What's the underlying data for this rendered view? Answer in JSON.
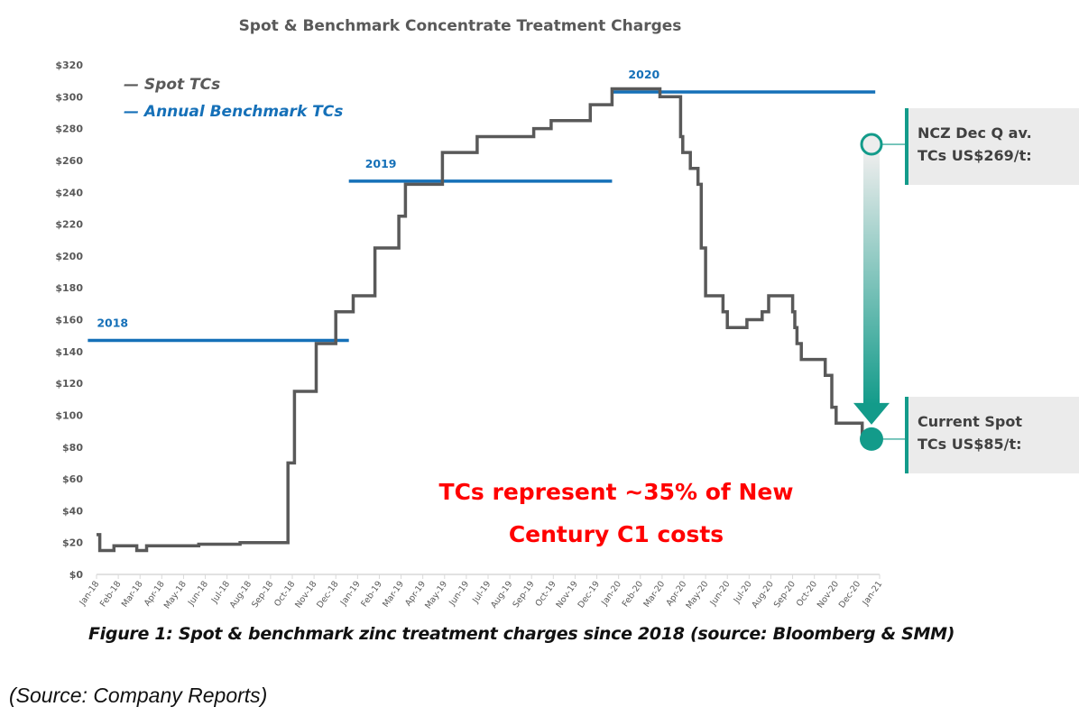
{
  "chart_data": {
    "type": "line",
    "title": "Spot & Benchmark Concentrate Treatment Charges",
    "xlabel": "",
    "ylabel": "",
    "ylim": [
      0,
      320
    ],
    "y_ticks": [
      "$0",
      "$20",
      "$40",
      "$60",
      "$80",
      "$100",
      "$120",
      "$140",
      "$160",
      "$180",
      "$200",
      "$220",
      "$240",
      "$260",
      "$280",
      "$300",
      "$320"
    ],
    "y_tick_values": [
      0,
      20,
      40,
      60,
      80,
      100,
      120,
      140,
      160,
      180,
      200,
      220,
      240,
      260,
      280,
      300,
      320
    ],
    "x_ticks": [
      "Jan-18",
      "Feb-18",
      "Mar-18",
      "Apr-18",
      "May-18",
      "Jun-18",
      "Jul-18",
      "Aug-18",
      "Sep-18",
      "Oct-18",
      "Nov-18",
      "Dec-18",
      "Jan-19",
      "Feb-19",
      "Mar-19",
      "Apr-19",
      "May-19",
      "Jun-19",
      "Jul-19",
      "Aug-19",
      "Sep-19",
      "Oct-19",
      "Nov-19",
      "Dec-19",
      "Jan-20",
      "Feb-20",
      "Mar-20",
      "Apr-20",
      "May-20",
      "Jun-20",
      "Jul-20",
      "Aug-20",
      "Sep-20",
      "Oct-20",
      "Nov-20",
      "Dec-20",
      "Jan-21"
    ],
    "xlim_months": [
      0,
      36
    ],
    "grid": false,
    "legend": {
      "position": "top-left",
      "entries": [
        {
          "label": "— Spot TCs",
          "color": "#595959"
        },
        {
          "label": "— Annual Benchmark TCs",
          "color": "#1570b8"
        }
      ]
    },
    "series": [
      {
        "name": "Spot TCs",
        "color": "#595959",
        "step": true,
        "x_months": [
          0.0,
          0.15,
          0.8,
          1.85,
          2.3,
          4.7,
          6.6,
          8.3,
          8.8,
          9.1,
          10.1,
          11.0,
          11.8,
          12.8,
          13.9,
          14.2,
          15.9,
          17.5,
          20.1,
          20.9,
          22.7,
          23.5,
          23.7,
          25.9,
          26.7,
          26.85,
          26.95,
          27.3,
          27.65,
          27.8,
          28.0,
          28.8,
          29.0,
          29.9,
          30.6,
          30.9,
          32.0,
          32.1,
          32.2,
          32.4,
          33.5,
          33.8,
          34.0,
          35.1,
          35.2
        ],
        "values": [
          25,
          15,
          18,
          15,
          18,
          19,
          20,
          20,
          70,
          115,
          145,
          165,
          175,
          205,
          225,
          245,
          265,
          275,
          280,
          285,
          295,
          295,
          305,
          300,
          300,
          275,
          265,
          255,
          245,
          205,
          175,
          165,
          155,
          160,
          165,
          175,
          165,
          155,
          145,
          135,
          125,
          105,
          95,
          95,
          88
        ]
      },
      {
        "name": "Annual Benchmark TCs",
        "color": "#1570b8",
        "segments": [
          {
            "label": "2018",
            "value": 147,
            "x_start_months": -0.4,
            "x_end_months": 11.6
          },
          {
            "label": "2019",
            "value": 247,
            "x_start_months": 11.6,
            "x_end_months": 23.7
          },
          {
            "label": "2020",
            "value": 303,
            "x_start_months": 23.7,
            "x_end_months": 35.8
          }
        ]
      }
    ],
    "annotations": {
      "note_lines": [
        "TCs represent ~35% of New",
        "Century C1 costs"
      ],
      "arrow": {
        "from_value": 269,
        "to_value": 85,
        "color": "#139b8a"
      },
      "callouts": [
        {
          "lines": [
            "NCZ Dec Q av.",
            "TCs US$269/t:"
          ],
          "value": 269
        },
        {
          "lines": [
            "Current Spot",
            "TCs US$85/t:"
          ],
          "value": 85
        }
      ]
    }
  },
  "caption": "Figure 1:  Spot & benchmark zinc treatment charges since 2018 (source: Bloomberg & SMM)",
  "source_note": "(Source: Company Reports)"
}
